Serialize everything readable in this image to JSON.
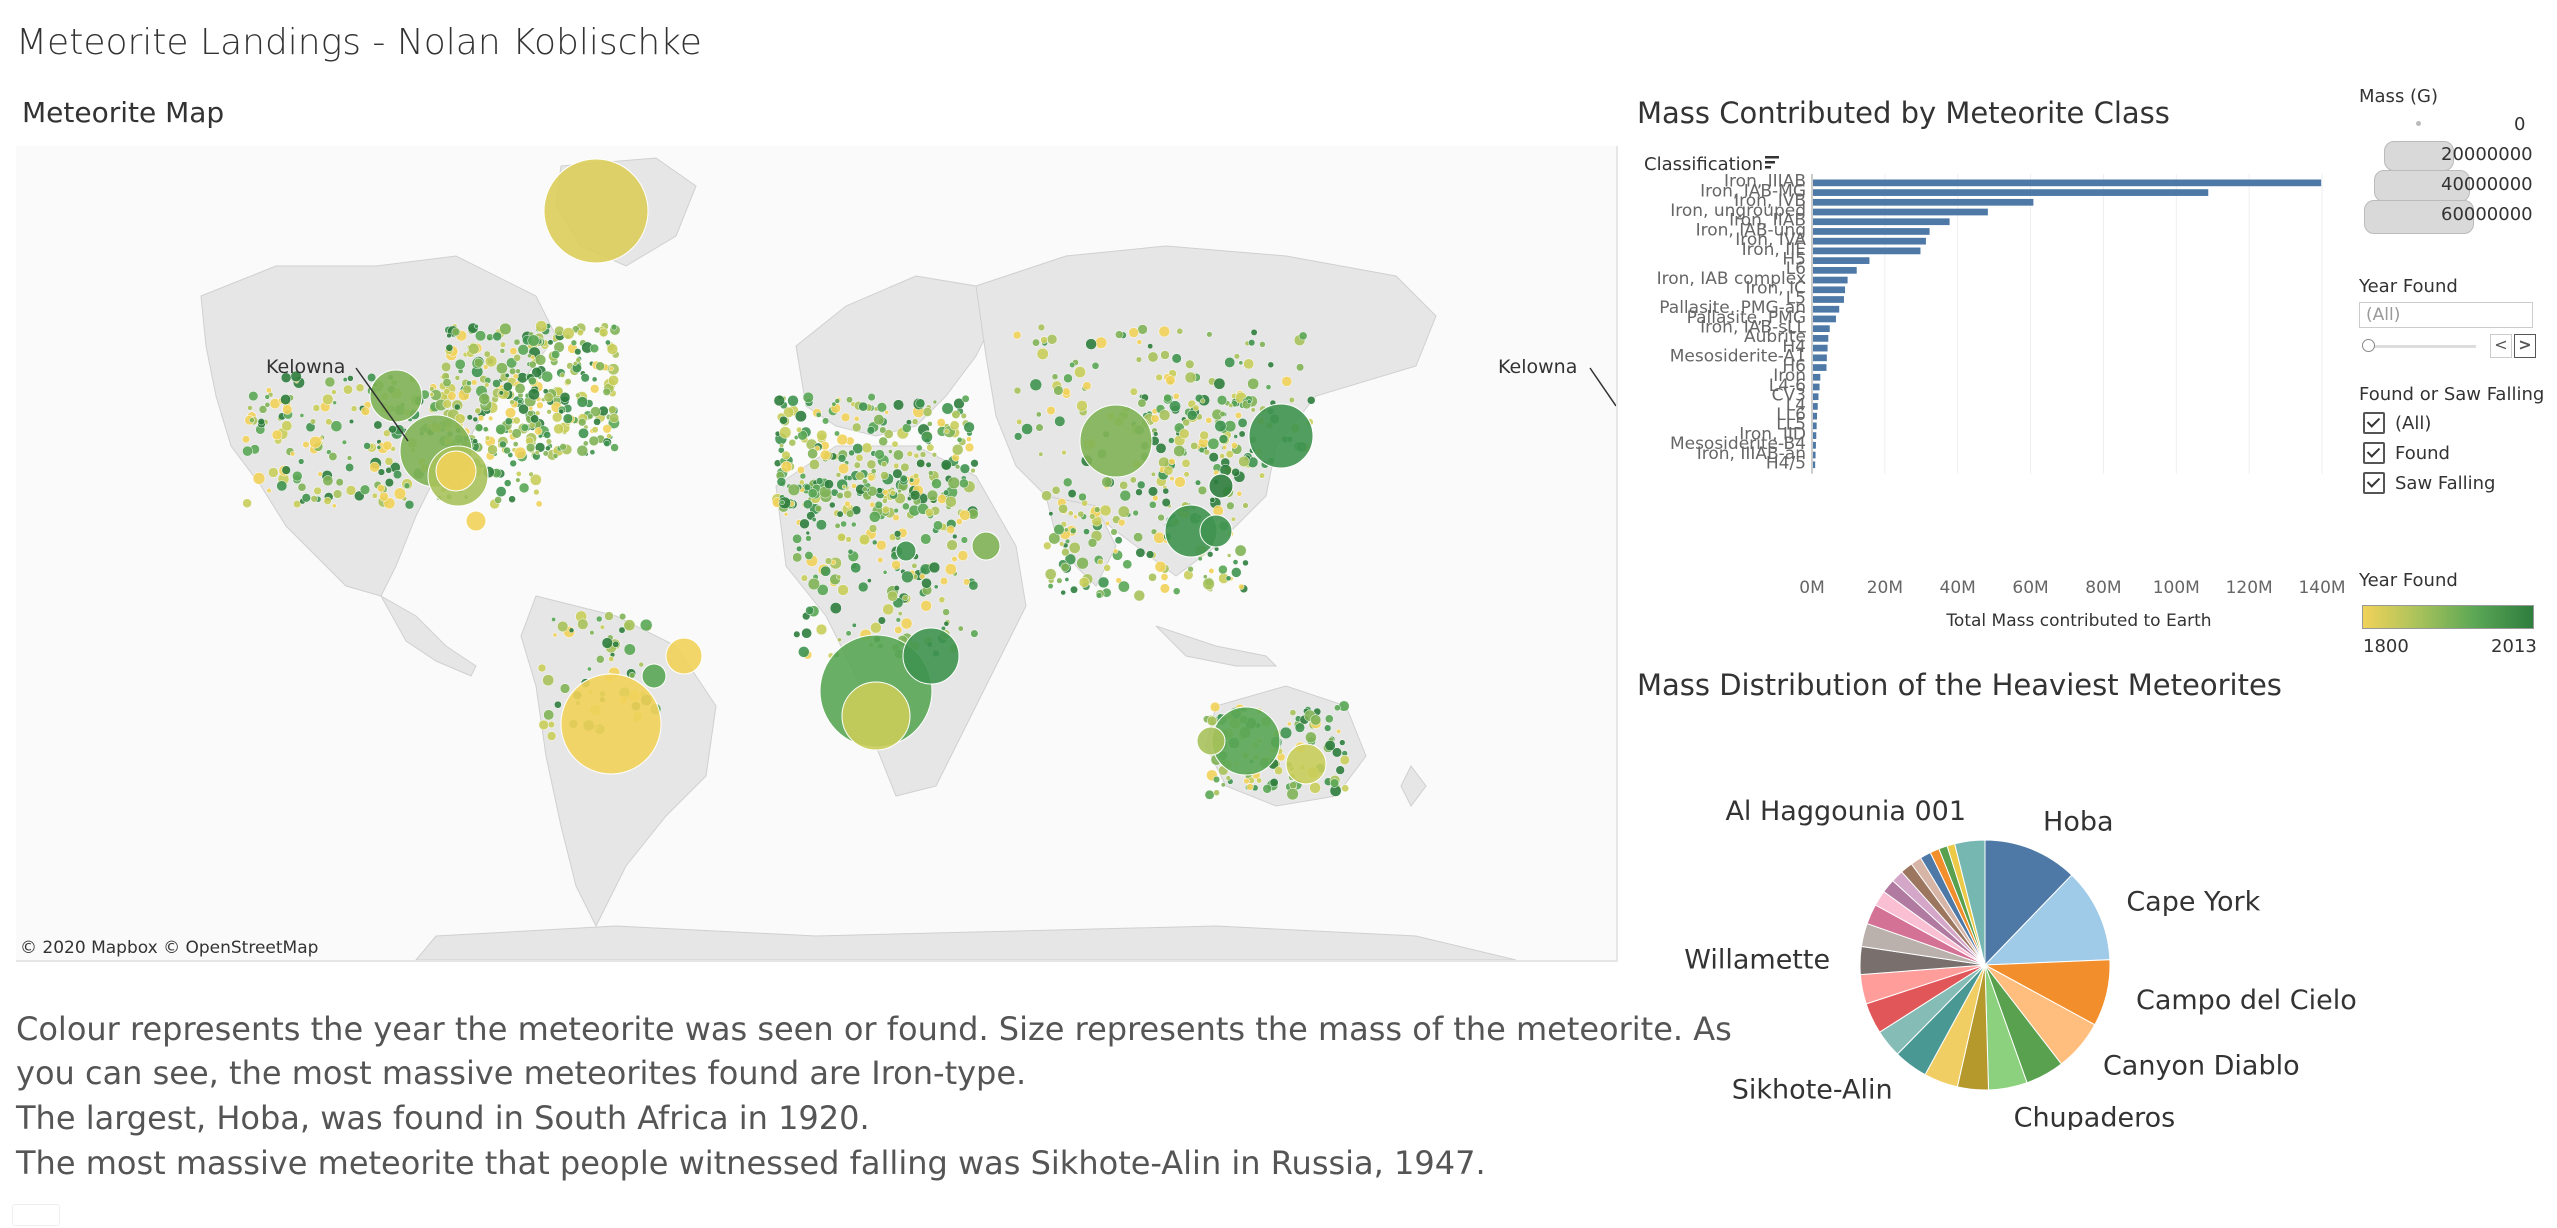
{
  "dashboard": {
    "title": "Meteorite Landings - Nolan Koblischke"
  },
  "map": {
    "title": "Meteorite Map",
    "credit": "© 2020 Mapbox  © OpenStreetMap",
    "annotation_label": "Kelowna",
    "annotation_label_right": "Kelowna"
  },
  "description": {
    "lines": [
      "Colour represents the year the meteorite was seen or found. Size represents the mass of the meteorite. As",
      "you can see, the most massive meteorites found are Iron-type.",
      "The largest, Hoba, was found in South Africa in 1920.",
      "The most massive meteorite that people witnessed falling was Sikhote-Alin in Russia, 1947."
    ]
  },
  "legend": {
    "mass": {
      "title": "Mass (G)",
      "labels": [
        "0",
        "20000000",
        "40000000",
        "60000000"
      ]
    },
    "year_filter": {
      "title": "Year Found",
      "value": "(All)",
      "prev": "<",
      "next": ">"
    },
    "found_filter": {
      "title": "Found or Saw Falling",
      "options": [
        "(All)",
        "Found",
        "Saw Falling"
      ]
    },
    "year_color": {
      "title": "Year Found",
      "min": "1800",
      "max": "2013",
      "colors": [
        "#f1d25a",
        "#a7c25b",
        "#5aa655",
        "#2e7d3d"
      ]
    }
  },
  "bar_chart": {
    "title": "Mass Contributed by Meteorite Class",
    "header": "Classification",
    "bar_color": "#4e79a7"
  },
  "pie_chart": {
    "title": "Mass Distribution of the Heaviest Meteorites"
  },
  "chart_data": [
    {
      "type": "bar",
      "orientation": "horizontal",
      "title": "Mass Contributed by Meteorite Class",
      "xlabel": "Total Mass contributed to Earth",
      "ylabel": "Classification",
      "xlim": [
        0,
        140000000
      ],
      "xticks": [
        "0M",
        "20M",
        "40M",
        "60M",
        "80M",
        "100M",
        "120M",
        "140M"
      ],
      "categories": [
        "Iron, IIIAB",
        "Iron, IAB-MG",
        "Iron, IVB",
        "Iron, ungrouped",
        "Iron, IIAB",
        "Iron, IAB-ung",
        "Iron, IVA",
        "Iron, IIE",
        "H5",
        "L6",
        "Iron, IAB complex",
        "Iron, IC",
        "L5",
        "Pallasite, PMG-an",
        "Pallasite, PMG",
        "Iron, IAB-sLL",
        "Aubrite",
        "H4",
        "Mesosiderite-A1",
        "H6",
        "Iron",
        "L4-6",
        "CV3",
        "L4",
        "LL6",
        "LL5",
        "Iron, IID",
        "Mesosiderite-B4",
        "Iron, IIIAB-an",
        "H4/5"
      ],
      "values": [
        139500000,
        108500000,
        60500000,
        48000000,
        37500000,
        32000000,
        31000000,
        29500000,
        15500000,
        12000000,
        9500000,
        8800000,
        8500000,
        7200000,
        6300000,
        4600000,
        4200000,
        4000000,
        3800000,
        3700000,
        2000000,
        1800000,
        1500000,
        1300000,
        1100000,
        1000000,
        900000,
        800000,
        700000,
        600000
      ],
      "grid": true
    },
    {
      "type": "pie",
      "title": "Mass Distribution of the Heaviest Meteorites",
      "labels": [
        "Hoba",
        "Cape York",
        "Campo del Cielo",
        "Canyon Diablo",
        "",
        "Chupaderos",
        "",
        "",
        "Sikhote-Alin",
        "",
        "",
        "",
        "Willamette",
        "",
        "",
        "",
        "",
        "",
        "",
        "",
        "",
        "",
        "",
        "",
        "Al Haggounia 001"
      ],
      "values": [
        12.2,
        12.1,
        8.6,
        6.6,
        5.0,
        5.0,
        4.0,
        4.4,
        4.4,
        3.6,
        4.0,
        3.8,
        3.6,
        3.0,
        2.6,
        2.0,
        1.8,
        1.6,
        1.6,
        1.4,
        1.4,
        1.2,
        1.1,
        1.0,
        3.9
      ],
      "colors": [
        "#4e79a7",
        "#a0cbe8",
        "#f28e2b",
        "#ffbe7d",
        "#59a14f",
        "#8cd17d",
        "#b6992d",
        "#f1ce63",
        "#499894",
        "#86bcb6",
        "#e15759",
        "#ff9d9a",
        "#79706e",
        "#bab0ac",
        "#d37295",
        "#fabfd2",
        "#b07aa1",
        "#d4a6c8",
        "#9d7660",
        "#d7b5a6",
        "#4e79a7",
        "#f28e2b",
        "#59a14f",
        "#edc948",
        "#76b7b2"
      ]
    }
  ]
}
